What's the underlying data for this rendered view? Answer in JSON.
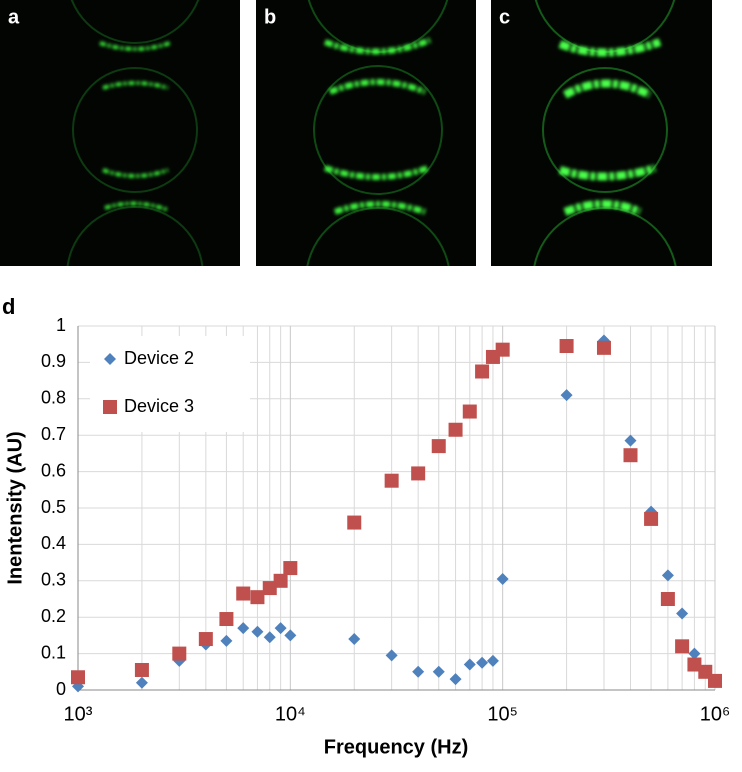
{
  "figure_labels": [
    "a",
    "b",
    "c",
    "d"
  ],
  "chart_data": {
    "type": "scatter",
    "xlabel": "Frequency (Hz)",
    "ylabel": "Inentensity (AU)",
    "xscale": "log",
    "xlim": [
      1000,
      1000000
    ],
    "xticks": [
      {
        "value": 1000,
        "label": "10³"
      },
      {
        "value": 10000,
        "label": "10⁴"
      },
      {
        "value": 100000,
        "label": "10⁵"
      },
      {
        "value": 1000000,
        "label": "10⁶"
      }
    ],
    "ylim": [
      0,
      1
    ],
    "yticks": [
      0,
      0.1,
      0.2,
      0.3,
      0.4,
      0.5,
      0.6,
      0.7,
      0.8,
      0.9,
      1
    ],
    "grid": true,
    "minor_grid": true,
    "legend": "upper left",
    "series": [
      {
        "name": "Device 2",
        "color": "#4f81bd",
        "marker": "diamond",
        "x": [
          1000,
          2000,
          3000,
          4000,
          5000,
          6000,
          7000,
          8000,
          9000,
          10000,
          20000,
          30000,
          40000,
          50000,
          60000,
          70000,
          80000,
          90000,
          100000,
          200000,
          300000,
          400000,
          500000,
          600000,
          700000,
          800000
        ],
        "values": [
          0.01,
          0.02,
          0.08,
          0.125,
          0.135,
          0.17,
          0.16,
          0.145,
          0.17,
          0.15,
          0.14,
          0.095,
          0.05,
          0.05,
          0.03,
          0.07,
          0.075,
          0.08,
          0.305,
          0.81,
          0.96,
          0.685,
          0.49,
          0.315,
          0.21,
          0.1
        ]
      },
      {
        "name": "Device 3",
        "color": "#c0504d",
        "marker": "square",
        "x": [
          1000,
          2000,
          3000,
          4000,
          5000,
          6000,
          7000,
          8000,
          9000,
          10000,
          20000,
          30000,
          40000,
          50000,
          60000,
          70000,
          80000,
          90000,
          100000,
          200000,
          300000,
          400000,
          500000,
          600000,
          700000,
          800000,
          900000,
          1000000
        ],
        "values": [
          0.035,
          0.055,
          0.1,
          0.14,
          0.195,
          0.265,
          0.255,
          0.28,
          0.3,
          0.335,
          0.46,
          0.575,
          0.595,
          0.67,
          0.715,
          0.765,
          0.875,
          0.915,
          0.935,
          0.945,
          0.94,
          0.645,
          0.47,
          0.25,
          0.12,
          0.07,
          0.05,
          0.025
        ]
      }
    ]
  }
}
